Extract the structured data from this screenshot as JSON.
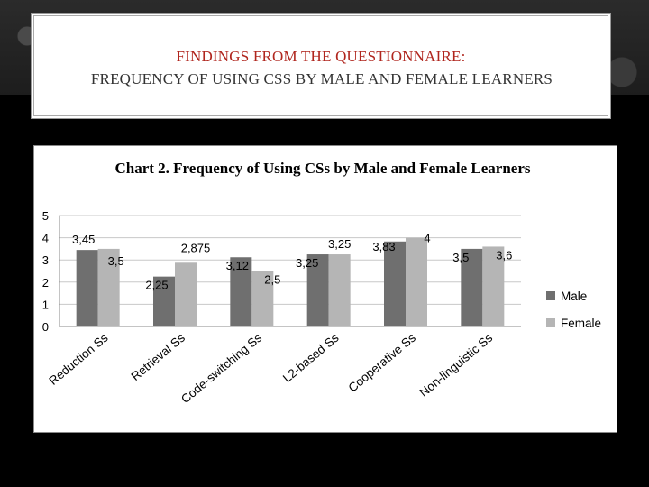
{
  "slide": {
    "title_line1": "FINDINGS FROM THE QUESTIONNAIRE:",
    "title_line2": "FREQUENCY OF USING CSS BY MALE AND FEMALE LEARNERS"
  },
  "colors": {
    "male": "#6f6f6f",
    "female": "#b5b5b5",
    "title_accent": "#b0261e"
  },
  "chart_data": {
    "type": "bar",
    "title": "Chart 2. Frequency of Using CSs by Male and Female Learners",
    "categories": [
      "Reduction Ss",
      "Retrieval Ss",
      "Code-switching Ss",
      "L2-based Ss",
      "Cooperative Ss",
      "Non-linguistic Ss"
    ],
    "series": [
      {
        "name": "Male",
        "values": [
          3.45,
          2.25,
          3.12,
          3.25,
          3.83,
          3.5
        ],
        "labels": [
          "3,45",
          "2,25",
          "3,12",
          "3,25",
          "3,83",
          "3,5"
        ]
      },
      {
        "name": "Female",
        "values": [
          3.5,
          2.875,
          2.5,
          3.25,
          4,
          3.6
        ],
        "labels": [
          "3,5",
          "2,875",
          "2,5",
          "3,25",
          "4",
          "3,6"
        ]
      }
    ],
    "ylim": [
      0,
      5
    ],
    "yticks": [
      "0",
      "1",
      "2",
      "3",
      "4",
      "5"
    ],
    "grid": true,
    "legend_position": "right"
  }
}
